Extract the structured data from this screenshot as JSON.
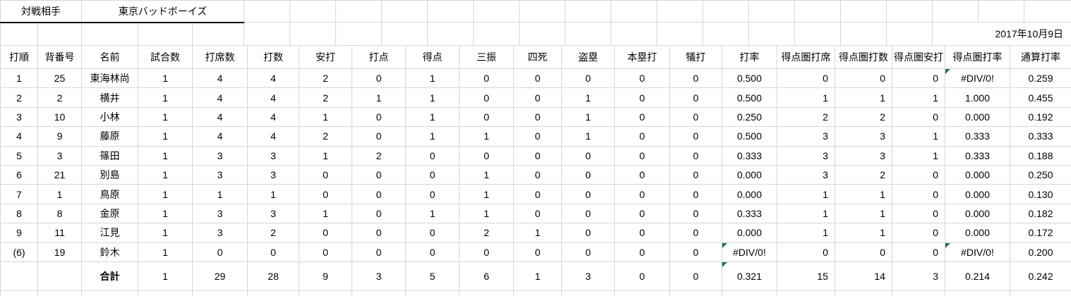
{
  "header_area": {
    "opponent_label": "対戦相手",
    "opponent_name": "東京バッドボーイズ",
    "date": "2017年10月9日"
  },
  "stats_table": {
    "columns": [
      "打順",
      "背番号",
      "名前",
      "試合数",
      "打席数",
      "打数",
      "安打",
      "打点",
      "得点",
      "三振",
      "四死",
      "盗塁",
      "本塁打",
      "犠打",
      "打率",
      "得点圏打席",
      "得点圏打数",
      "得点圏安打",
      "得点圏打率",
      "通算打率"
    ],
    "rows": [
      [
        "1",
        "25",
        "東海林尚",
        "1",
        "4",
        "4",
        "2",
        "0",
        "1",
        "0",
        "0",
        "0",
        "0",
        "0",
        "0.500",
        "0",
        "0",
        "0",
        "#DIV/0!",
        "0.259"
      ],
      [
        "2",
        "2",
        "横井",
        "1",
        "4",
        "4",
        "2",
        "1",
        "1",
        "0",
        "0",
        "1",
        "0",
        "0",
        "0.500",
        "1",
        "1",
        "1",
        "1.000",
        "0.455"
      ],
      [
        "3",
        "10",
        "小林",
        "1",
        "4",
        "4",
        "1",
        "0",
        "1",
        "0",
        "0",
        "1",
        "0",
        "0",
        "0.250",
        "2",
        "2",
        "0",
        "0.000",
        "0.192"
      ],
      [
        "4",
        "9",
        "藤原",
        "1",
        "4",
        "4",
        "2",
        "0",
        "1",
        "1",
        "0",
        "1",
        "0",
        "0",
        "0.500",
        "3",
        "3",
        "1",
        "0.333",
        "0.333"
      ],
      [
        "5",
        "3",
        "篠田",
        "1",
        "3",
        "3",
        "1",
        "2",
        "0",
        "0",
        "0",
        "0",
        "0",
        "0",
        "0.333",
        "3",
        "3",
        "1",
        "0.333",
        "0.188"
      ],
      [
        "6",
        "21",
        "別島",
        "1",
        "3",
        "3",
        "0",
        "0",
        "0",
        "1",
        "0",
        "0",
        "0",
        "0",
        "0.000",
        "3",
        "2",
        "0",
        "0.000",
        "0.250"
      ],
      [
        "7",
        "1",
        "鳥原",
        "1",
        "1",
        "1",
        "0",
        "0",
        "0",
        "1",
        "0",
        "0",
        "0",
        "0",
        "0.000",
        "1",
        "1",
        "0",
        "0.000",
        "0.130"
      ],
      [
        "8",
        "8",
        "金原",
        "1",
        "3",
        "3",
        "1",
        "0",
        "1",
        "1",
        "0",
        "0",
        "0",
        "0",
        "0.333",
        "1",
        "1",
        "0",
        "0.000",
        "0.182"
      ],
      [
        "9",
        "11",
        "江見",
        "1",
        "3",
        "2",
        "0",
        "0",
        "0",
        "2",
        "1",
        "0",
        "0",
        "0",
        "0.000",
        "1",
        "1",
        "0",
        "0.000",
        "0.172"
      ],
      [
        "(6)",
        "19",
        "鈴木",
        "1",
        "0",
        "0",
        "0",
        "0",
        "0",
        "0",
        "0",
        "0",
        "0",
        "0",
        "#DIV/0!",
        "0",
        "0",
        "0",
        "#DIV/0!",
        "0.200"
      ]
    ],
    "total_row": [
      "",
      "",
      "合計",
      "1",
      "29",
      "28",
      "9",
      "3",
      "5",
      "6",
      "1",
      "3",
      "0",
      "0",
      "0.321",
      "15",
      "14",
      "3",
      "0.214",
      "0.242"
    ],
    "total_label_col": 2,
    "right_aligned_cols": [
      15,
      16,
      17
    ],
    "error_cells": [
      {
        "row": 0,
        "col": 18
      },
      {
        "row": 9,
        "col": 14
      },
      {
        "row": 9,
        "col": 18
      },
      {
        "row": "total",
        "col": 14
      }
    ]
  },
  "colors": {
    "gridline": "#d6d6d6",
    "title_underline": "#000000",
    "error_indicator": "#217346",
    "text": "#000000",
    "background": "#ffffff"
  }
}
